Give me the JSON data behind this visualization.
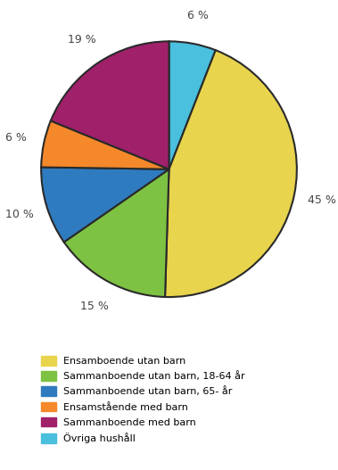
{
  "slices": [
    6,
    45,
    15,
    10,
    6,
    19
  ],
  "colors": [
    "#4ABFDE",
    "#E8D44D",
    "#7DC242",
    "#2F7BBF",
    "#F5882A",
    "#A0206A"
  ],
  "label_texts": [
    "6 %",
    "45 %",
    "15 %",
    "10 %",
    "6 %",
    "19 %"
  ],
  "legend_labels": [
    "Ensamboende utan barn",
    "Sammanboende utan barn, 18-64 år",
    "Sammanboende utan barn, 65- år",
    "Ensamstående med barn",
    "Sammanboende med barn",
    "Övriga hushåll"
  ],
  "legend_colors": [
    "#E8D44D",
    "#7DC242",
    "#2F7BBF",
    "#F5882A",
    "#A0206A",
    "#4ABFDE"
  ],
  "background_color": "#ffffff"
}
